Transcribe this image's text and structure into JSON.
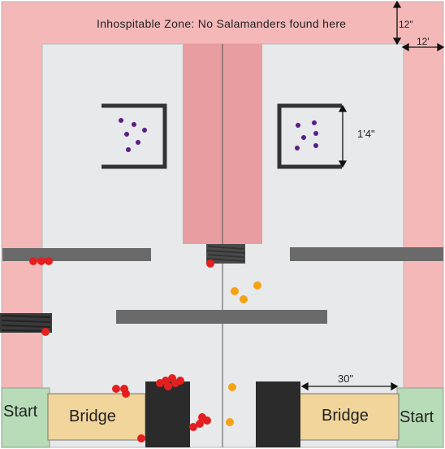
{
  "zone_label": "Inhospitable Zone: No Salamanders found here",
  "dimensions": {
    "border_height": "12\"",
    "border_width": "12'",
    "box_height": "1'4\"",
    "ramp_width": "30\""
  },
  "start_left": "Start",
  "start_right": "Start",
  "bridge_left": "Bridge",
  "bridge_right": "Bridge",
  "colors": {
    "inhospitable_zone": "#f4b8b8",
    "center_strip": "#e89ea1",
    "arena_floor": "#e7e9eb",
    "barrier": "#6a6a6a",
    "box_outline": "#333333",
    "start_zone": "#b7dcb7",
    "bridge": "#f1d59b",
    "ramp": "#2b2b2b",
    "salamander_red": "#e41f1f",
    "salamander_orange": "#f5a314",
    "salamander_purple": "#5a1f86"
  }
}
